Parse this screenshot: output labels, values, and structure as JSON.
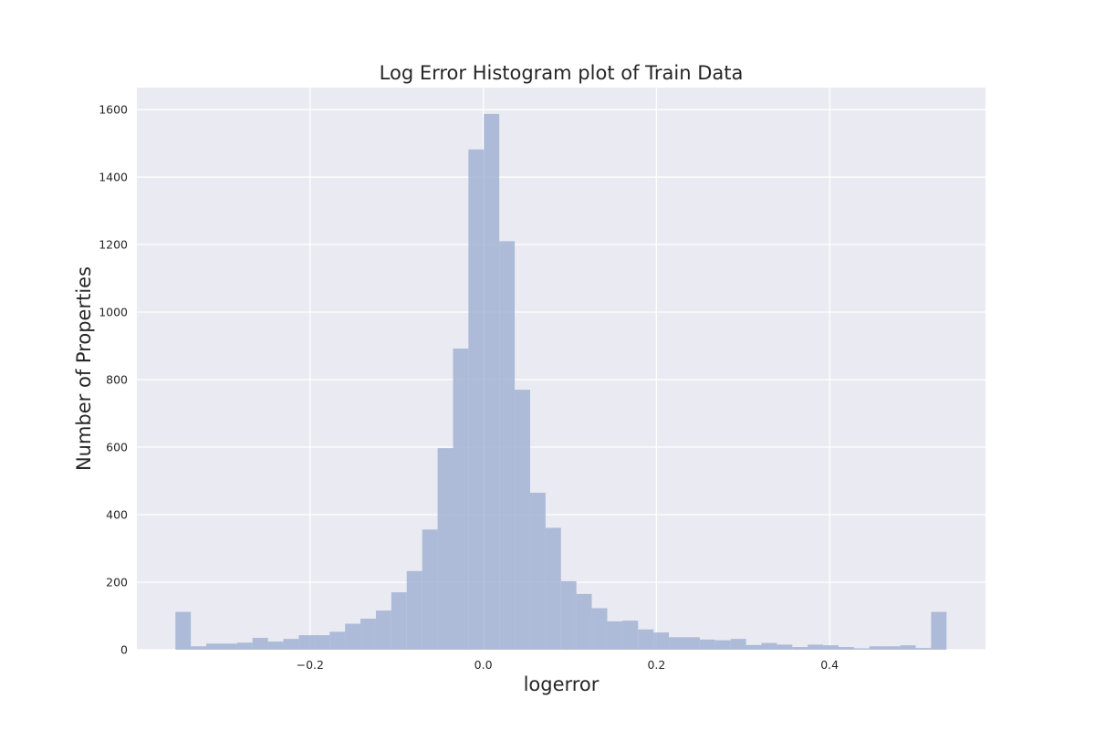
{
  "chart_data": {
    "type": "bar",
    "title": "Log Error Histogram plot of Train Data",
    "xlabel": "logerror",
    "ylabel": "Number of Properties",
    "xlim": [
      -0.4,
      0.58
    ],
    "ylim": [
      0,
      1665
    ],
    "grid": true,
    "x_ticks": [
      -0.2,
      0.0,
      0.2,
      0.4
    ],
    "x_tick_labels": [
      "−0.2",
      "0.0",
      "0.2",
      "0.4"
    ],
    "y_ticks": [
      0,
      200,
      400,
      600,
      800,
      1000,
      1200,
      1400,
      1600
    ],
    "y_tick_labels": [
      "0",
      "200",
      "400",
      "600",
      "800",
      "1000",
      "1200",
      "1400",
      "1600"
    ],
    "bin_start": -0.3555,
    "bin_width": 0.01781,
    "bin_counts": [
      112,
      10,
      18,
      18,
      21,
      35,
      24,
      32,
      43,
      43,
      53,
      77,
      92,
      116,
      170,
      233,
      356,
      597,
      892,
      1482,
      1587,
      1210,
      770,
      465,
      361,
      203,
      165,
      123,
      84,
      86,
      60,
      51,
      37,
      37,
      30,
      28,
      32,
      14,
      20,
      15,
      8,
      15,
      13,
      8,
      4,
      10,
      10,
      13,
      5,
      112
    ],
    "colors": {
      "background": "#eaeaf2",
      "grid": "#ffffff",
      "bar": "#a2b3d5"
    }
  }
}
